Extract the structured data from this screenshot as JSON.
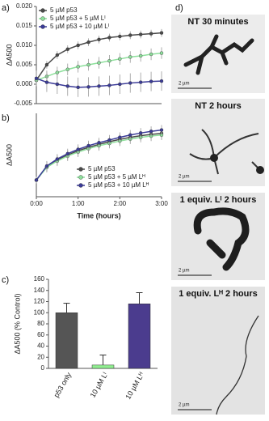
{
  "chart_data": [
    {
      "type": "line",
      "label": "a)",
      "ylabel": "ΔA500",
      "x": [
        0,
        0.25,
        0.5,
        0.75,
        1,
        1.25,
        1.5,
        1.75,
        2,
        2.25,
        2.5,
        2.75,
        3
      ],
      "xlim": [
        0,
        3
      ],
      "ylim": [
        -0.005,
        0.02
      ],
      "yticks": [
        {
          "value": 0.02,
          "label": "0.020"
        },
        0.015,
        {
          "value": 0.01,
          "label": "0.010"
        },
        0.005,
        {
          "value": 0,
          "label": "0.000"
        },
        -0.005
      ],
      "legend": "upper left",
      "series": [
        {
          "name": "5 µM p53",
          "color": "#4a4a4a",
          "values": [
            0.001,
            0.005,
            0.0075,
            0.009,
            0.01,
            0.0108,
            0.0115,
            0.012,
            0.0123,
            0.0126,
            0.0128,
            0.013,
            0.0132
          ],
          "errors": [
            0.0008,
            0.001,
            0.001,
            0.001,
            0.001,
            0.001,
            0.001,
            0.001,
            0.001,
            0.001,
            0.001,
            0.001,
            0.001
          ]
        },
        {
          "name": "5 µM p53 + 5 µM Lᴵ",
          "color": "#8ee09c",
          "values": [
            0.001,
            0.002,
            0.003,
            0.0038,
            0.0045,
            0.005,
            0.0055,
            0.006,
            0.0065,
            0.007,
            0.0073,
            0.0077,
            0.008
          ],
          "errors": [
            0.0012,
            0.0015,
            0.0015,
            0.0015,
            0.0015,
            0.0015,
            0.0015,
            0.0015,
            0.0015,
            0.0015,
            0.0015,
            0.0015,
            0.0015
          ]
        },
        {
          "name": "5 µM p53 + 10 µM Lᴵ",
          "color": "#3b3b98",
          "values": [
            0.0015,
            0.0005,
            0,
            -0.0005,
            -0.0008,
            -0.0007,
            -0.0005,
            -0.0003,
            0,
            0.0003,
            0.0005,
            0.0007,
            0.0008
          ],
          "errors": [
            0.002,
            0.0025,
            0.0025,
            0.0025,
            0.0025,
            0.0025,
            0.0025,
            0.0025,
            0.0025,
            0.0025,
            0.0025,
            0.0025,
            0.0025
          ]
        }
      ]
    },
    {
      "type": "line",
      "label": "b)",
      "ylabel": "ΔA500",
      "xlabel": "Time (hours)",
      "x": [
        0,
        0.25,
        0.5,
        0.75,
        1,
        1.25,
        1.5,
        1.75,
        2,
        2.25,
        2.5,
        2.75,
        3
      ],
      "xlim": [
        0,
        3
      ],
      "ylim": [
        -0.005,
        0.02
      ],
      "xticks": [
        {
          "value": 0,
          "label": "0:00"
        },
        {
          "value": 1,
          "label": "1:00"
        },
        {
          "value": 2,
          "label": "2:00"
        },
        {
          "value": 3,
          "label": "3:00"
        }
      ],
      "legend": "lower right",
      "series": [
        {
          "name": "5 µM p53",
          "color": "#4a4a4a",
          "values": [
            0,
            0.004,
            0.006,
            0.0075,
            0.0088,
            0.0098,
            0.0107,
            0.0115,
            0.0122,
            0.0128,
            0.0133,
            0.0137,
            0.014
          ],
          "errors": [
            0.001,
            0.0015,
            0.0015,
            0.0015,
            0.0015,
            0.0015,
            0.0015,
            0.0015,
            0.0015,
            0.0015,
            0.0015,
            0.0015,
            0.0015
          ]
        },
        {
          "name": "5 µM p53 + 5 µM Lᴴ",
          "color": "#8ee09c",
          "values": [
            0,
            0.0038,
            0.0057,
            0.0072,
            0.0084,
            0.0094,
            0.0103,
            0.011,
            0.0117,
            0.0123,
            0.0128,
            0.0132,
            0.0135
          ],
          "errors": [
            0.001,
            0.0015,
            0.0015,
            0.0015,
            0.0015,
            0.0015,
            0.0015,
            0.0015,
            0.0015,
            0.0015,
            0.0015,
            0.0015,
            0.0015
          ]
        },
        {
          "name": "5 µM p53 + 10 µM Lᴴ",
          "color": "#3b3b98",
          "values": [
            0,
            0.0042,
            0.0063,
            0.0079,
            0.0092,
            0.0103,
            0.0112,
            0.012,
            0.0128,
            0.0135,
            0.0141,
            0.0146,
            0.015
          ],
          "errors": [
            0.001,
            0.0015,
            0.0015,
            0.0015,
            0.0015,
            0.0015,
            0.0015,
            0.0015,
            0.0015,
            0.0015,
            0.0015,
            0.0015,
            0.0015
          ]
        }
      ]
    },
    {
      "type": "bar",
      "label": "c)",
      "ylabel": "ΔA500 (% Control)",
      "categories": [
        "p53 only",
        "10 µM Lᴵ",
        "10 µM Lᴴ"
      ],
      "values": [
        100,
        6,
        116
      ],
      "errors": [
        17,
        18,
        20
      ],
      "colors": [
        "#555555",
        "#90ee90",
        "#4b3c8e"
      ],
      "ylim": [
        0,
        160
      ],
      "yticks": [
        0,
        20,
        40,
        60,
        80,
        100,
        120,
        140,
        160
      ]
    }
  ],
  "panel_d": {
    "label": "d)",
    "images": [
      {
        "caption": "NT 30 minutes",
        "scale": "2 µm"
      },
      {
        "caption": "NT 2 hours",
        "scale": "2 µm"
      },
      {
        "caption": "1 equiv. Lᴵ 2 hours",
        "scale": "2 µm"
      },
      {
        "caption": "1 equiv. Lᴴ 2 hours",
        "scale": "2 µm"
      }
    ]
  }
}
